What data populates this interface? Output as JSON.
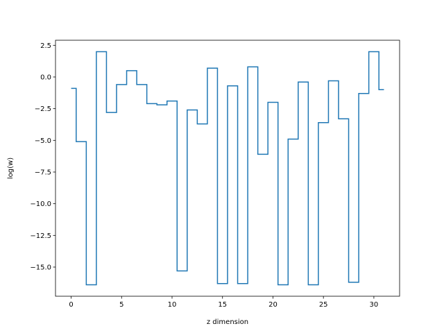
{
  "chart_data": {
    "type": "line",
    "drawstyle": "steps-mid",
    "xlabel": "z dimension",
    "ylabel": "log(w)",
    "xlim": [
      -1.55,
      32.55
    ],
    "ylim": [
      -17.3,
      2.9
    ],
    "xticks": [
      0,
      5,
      10,
      15,
      20,
      25,
      30
    ],
    "xtick_labels": [
      "0",
      "5",
      "10",
      "15",
      "20",
      "25",
      "30"
    ],
    "yticks": [
      2.5,
      0.0,
      -2.5,
      -5.0,
      -7.5,
      -10.0,
      -12.5,
      -15.0
    ],
    "ytick_labels": [
      "2.5",
      "0.0",
      "−2.5",
      "−5.0",
      "−7.5",
      "−10.0",
      "−12.5",
      "−15.0"
    ],
    "grid": false,
    "color": "#1f77b4",
    "series": [
      {
        "x": [
          0,
          1,
          2,
          3,
          4,
          5,
          6,
          7,
          8,
          9,
          10,
          11,
          12,
          13,
          14,
          15,
          16,
          17,
          18,
          19,
          20,
          21,
          22,
          23,
          24,
          25,
          26,
          27,
          28,
          29,
          30,
          31
        ],
        "values": [
          -0.9,
          -5.1,
          -16.4,
          2.0,
          -2.8,
          -0.6,
          0.5,
          -0.6,
          -2.1,
          -2.2,
          -1.9,
          -15.3,
          -2.6,
          -3.7,
          0.7,
          -16.3,
          -0.7,
          -16.3,
          0.8,
          -6.1,
          -2.0,
          -16.4,
          -4.9,
          -0.4,
          -16.4,
          -3.6,
          -0.3,
          -3.3,
          -16.2,
          -1.3,
          2.0,
          -1.0
        ]
      }
    ]
  }
}
